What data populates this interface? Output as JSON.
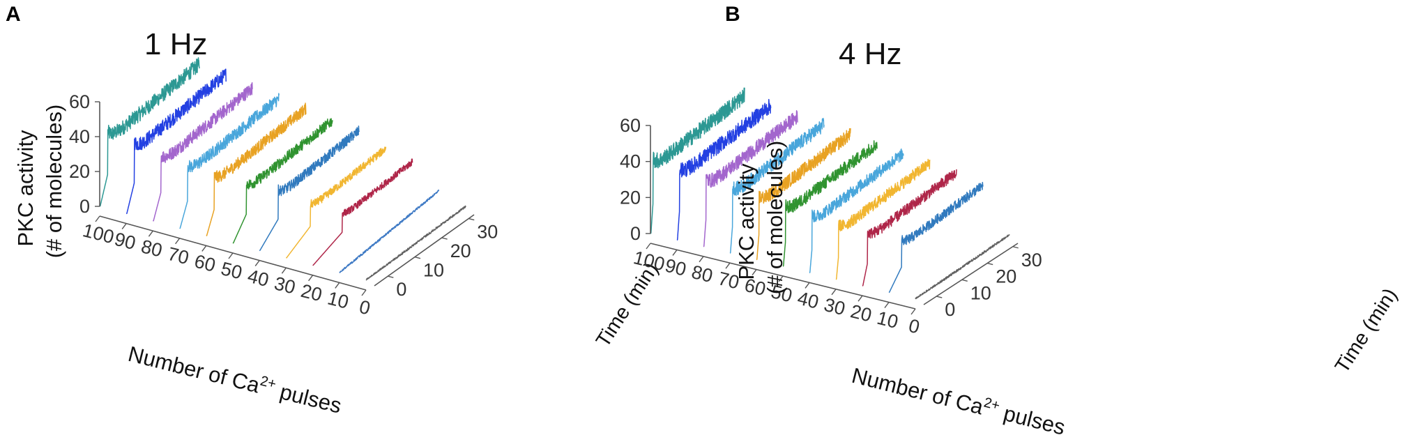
{
  "panels": [
    {
      "label": "A",
      "frequency": "1 Hz"
    },
    {
      "label": "B",
      "frequency": "4 Hz"
    }
  ],
  "axis_titles": {
    "z_line1": "PKC activity",
    "z_line2": "(# of molecules)",
    "x_main": "Number of Ca",
    "x_sup": "2+",
    "x_tail": " pulses",
    "y": "Time (min)"
  },
  "colors": [
    "#1a8f8a",
    "#1030e0",
    "#9b59c9",
    "#3a9ed8",
    "#e69a10",
    "#1e8a1e",
    "#1f6fb8",
    "#f0b020",
    "#a8143a",
    "#3070c0",
    "#3a5aa8",
    "#555555"
  ],
  "chart_data": [
    {
      "type": "line",
      "title": "1 Hz",
      "xlabel": "Number of Ca2+ pulses",
      "ylabel": "Time (min)",
      "zlabel": "PKC activity (# of molecules)",
      "x_ticks": [
        "100",
        "90",
        "80",
        "70",
        "60",
        "50",
        "40",
        "30",
        "20",
        "10",
        "0"
      ],
      "y_ticks": [
        "0",
        "10",
        "20",
        "30"
      ],
      "z_ticks": [
        "0",
        "20",
        "40",
        "60"
      ],
      "zlim": [
        0,
        60
      ],
      "ylim": [
        -5,
        32
      ],
      "series": [
        {
          "name": "100 pulses",
          "pulses": 100,
          "plateau": 48,
          "rise_time": -2,
          "color": "#1a8f8a"
        },
        {
          "name": "90 pulses",
          "pulses": 90,
          "plateau": 46,
          "rise_time": -2,
          "color": "#1030e0"
        },
        {
          "name": "80 pulses",
          "pulses": 80,
          "plateau": 42,
          "rise_time": -2,
          "color": "#9b59c9"
        },
        {
          "name": "70 pulses",
          "pulses": 70,
          "plateau": 40,
          "rise_time": -2,
          "color": "#3a9ed8"
        },
        {
          "name": "60 pulses",
          "pulses": 60,
          "plateau": 38,
          "rise_time": -2,
          "color": "#e69a10"
        },
        {
          "name": "50 pulses",
          "pulses": 50,
          "plateau": 35,
          "rise_time": 0,
          "color": "#1e8a1e"
        },
        {
          "name": "40 pulses",
          "pulses": 40,
          "plateau": 33,
          "rise_time": 2,
          "color": "#1f6fb8"
        },
        {
          "name": "30 pulses",
          "pulses": 30,
          "plateau": 26,
          "rise_time": 4,
          "color": "#f0b020"
        },
        {
          "name": "20 pulses",
          "pulses": 20,
          "plateau": 22,
          "rise_time": 6,
          "color": "#a8143a"
        },
        {
          "name": "10 pulses",
          "pulses": 10,
          "plateau": 4,
          "rise_time": 0,
          "color": "#3070c0"
        },
        {
          "name": "0 pulses",
          "pulses": 0,
          "plateau": 1,
          "rise_time": 0,
          "color": "#555555"
        }
      ]
    },
    {
      "type": "line",
      "title": "4 Hz",
      "xlabel": "Number of Ca2+ pulses",
      "ylabel": "Time (min)",
      "zlabel": "PKC activity (# of molecules)",
      "x_ticks": [
        "100",
        "90",
        "80",
        "70",
        "60",
        "50",
        "40",
        "30",
        "20",
        "10",
        "0"
      ],
      "y_ticks": [
        "0",
        "10",
        "20",
        "30"
      ],
      "z_ticks": [
        "0",
        "20",
        "40",
        "60"
      ],
      "zlim": [
        0,
        60
      ],
      "ylim": [
        -5,
        32
      ],
      "series": [
        {
          "name": "100 pulses",
          "pulses": 100,
          "plateau": 50,
          "rise_time": -4,
          "color": "#1a8f8a"
        },
        {
          "name": "90 pulses",
          "pulses": 90,
          "plateau": 48,
          "rise_time": -4,
          "color": "#1030e0"
        },
        {
          "name": "80 pulses",
          "pulses": 80,
          "plateau": 45,
          "rise_time": -4,
          "color": "#9b59c9"
        },
        {
          "name": "70 pulses",
          "pulses": 70,
          "plateau": 44,
          "rise_time": -4,
          "color": "#3a9ed8"
        },
        {
          "name": "60 pulses",
          "pulses": 60,
          "plateau": 42,
          "rise_time": -4,
          "color": "#e69a10"
        },
        {
          "name": "50 pulses",
          "pulses": 50,
          "plateau": 40,
          "rise_time": -4,
          "color": "#1e8a1e"
        },
        {
          "name": "40 pulses",
          "pulses": 40,
          "plateau": 38,
          "rise_time": -4,
          "color": "#3a9ed8"
        },
        {
          "name": "30 pulses",
          "pulses": 30,
          "plateau": 36,
          "rise_time": -4,
          "color": "#f0b020"
        },
        {
          "name": "20 pulses",
          "pulses": 20,
          "plateau": 34,
          "rise_time": -3,
          "color": "#a8143a"
        },
        {
          "name": "10 pulses",
          "pulses": 10,
          "plateau": 30,
          "rise_time": 0,
          "color": "#1f6fb8"
        },
        {
          "name": "0 pulses",
          "pulses": 0,
          "plateau": 1,
          "rise_time": 0,
          "color": "#555555"
        }
      ]
    }
  ]
}
